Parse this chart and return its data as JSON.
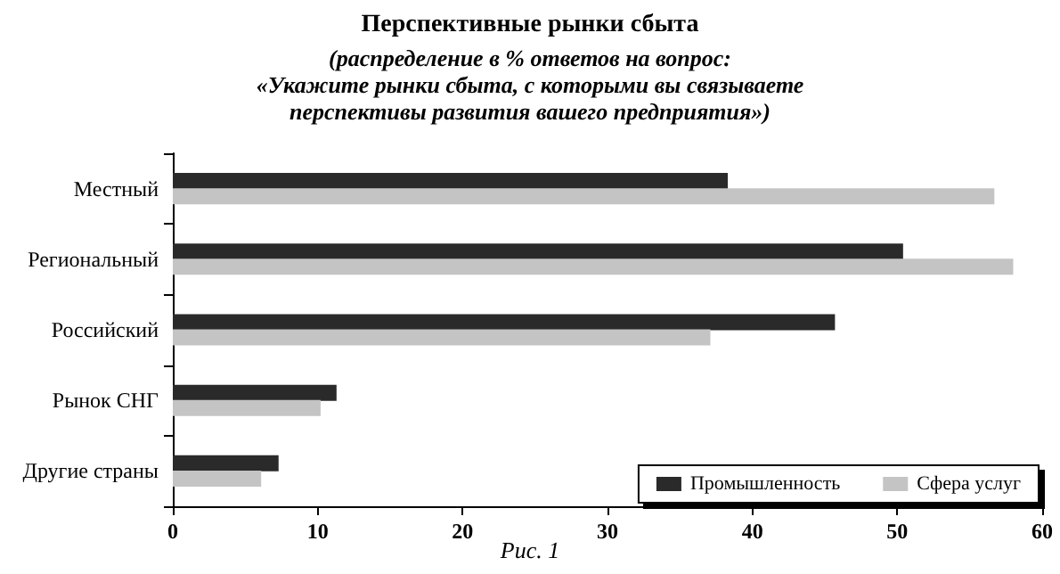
{
  "chart_data": {
    "type": "bar",
    "orientation": "horizontal",
    "title": "Перспективные рынки сбыта",
    "subtitle": "(распределение в % ответов на вопрос:\n«Укажите рынки сбыта, с которыми вы связываете\nперспективы развития вашего предприятия»)",
    "annotations": [
      "Рис. 1"
    ],
    "categories": [
      "Местный",
      "Региональный",
      "Российский",
      "Рынок СНГ",
      "Другие страны"
    ],
    "series": [
      {
        "name": "Промышленность",
        "color": "#2a2a2a",
        "values": [
          38.3,
          50.4,
          45.7,
          11.3,
          7.3
        ]
      },
      {
        "name": "Сфера услуг",
        "color": "#c4c4c4",
        "values": [
          56.7,
          58.0,
          37.1,
          10.2,
          6.1
        ]
      }
    ],
    "xlim": [
      0,
      60
    ],
    "xticks": [
      0,
      10,
      20,
      30,
      40,
      50,
      60
    ],
    "grid": false,
    "legend": "bottom right"
  }
}
